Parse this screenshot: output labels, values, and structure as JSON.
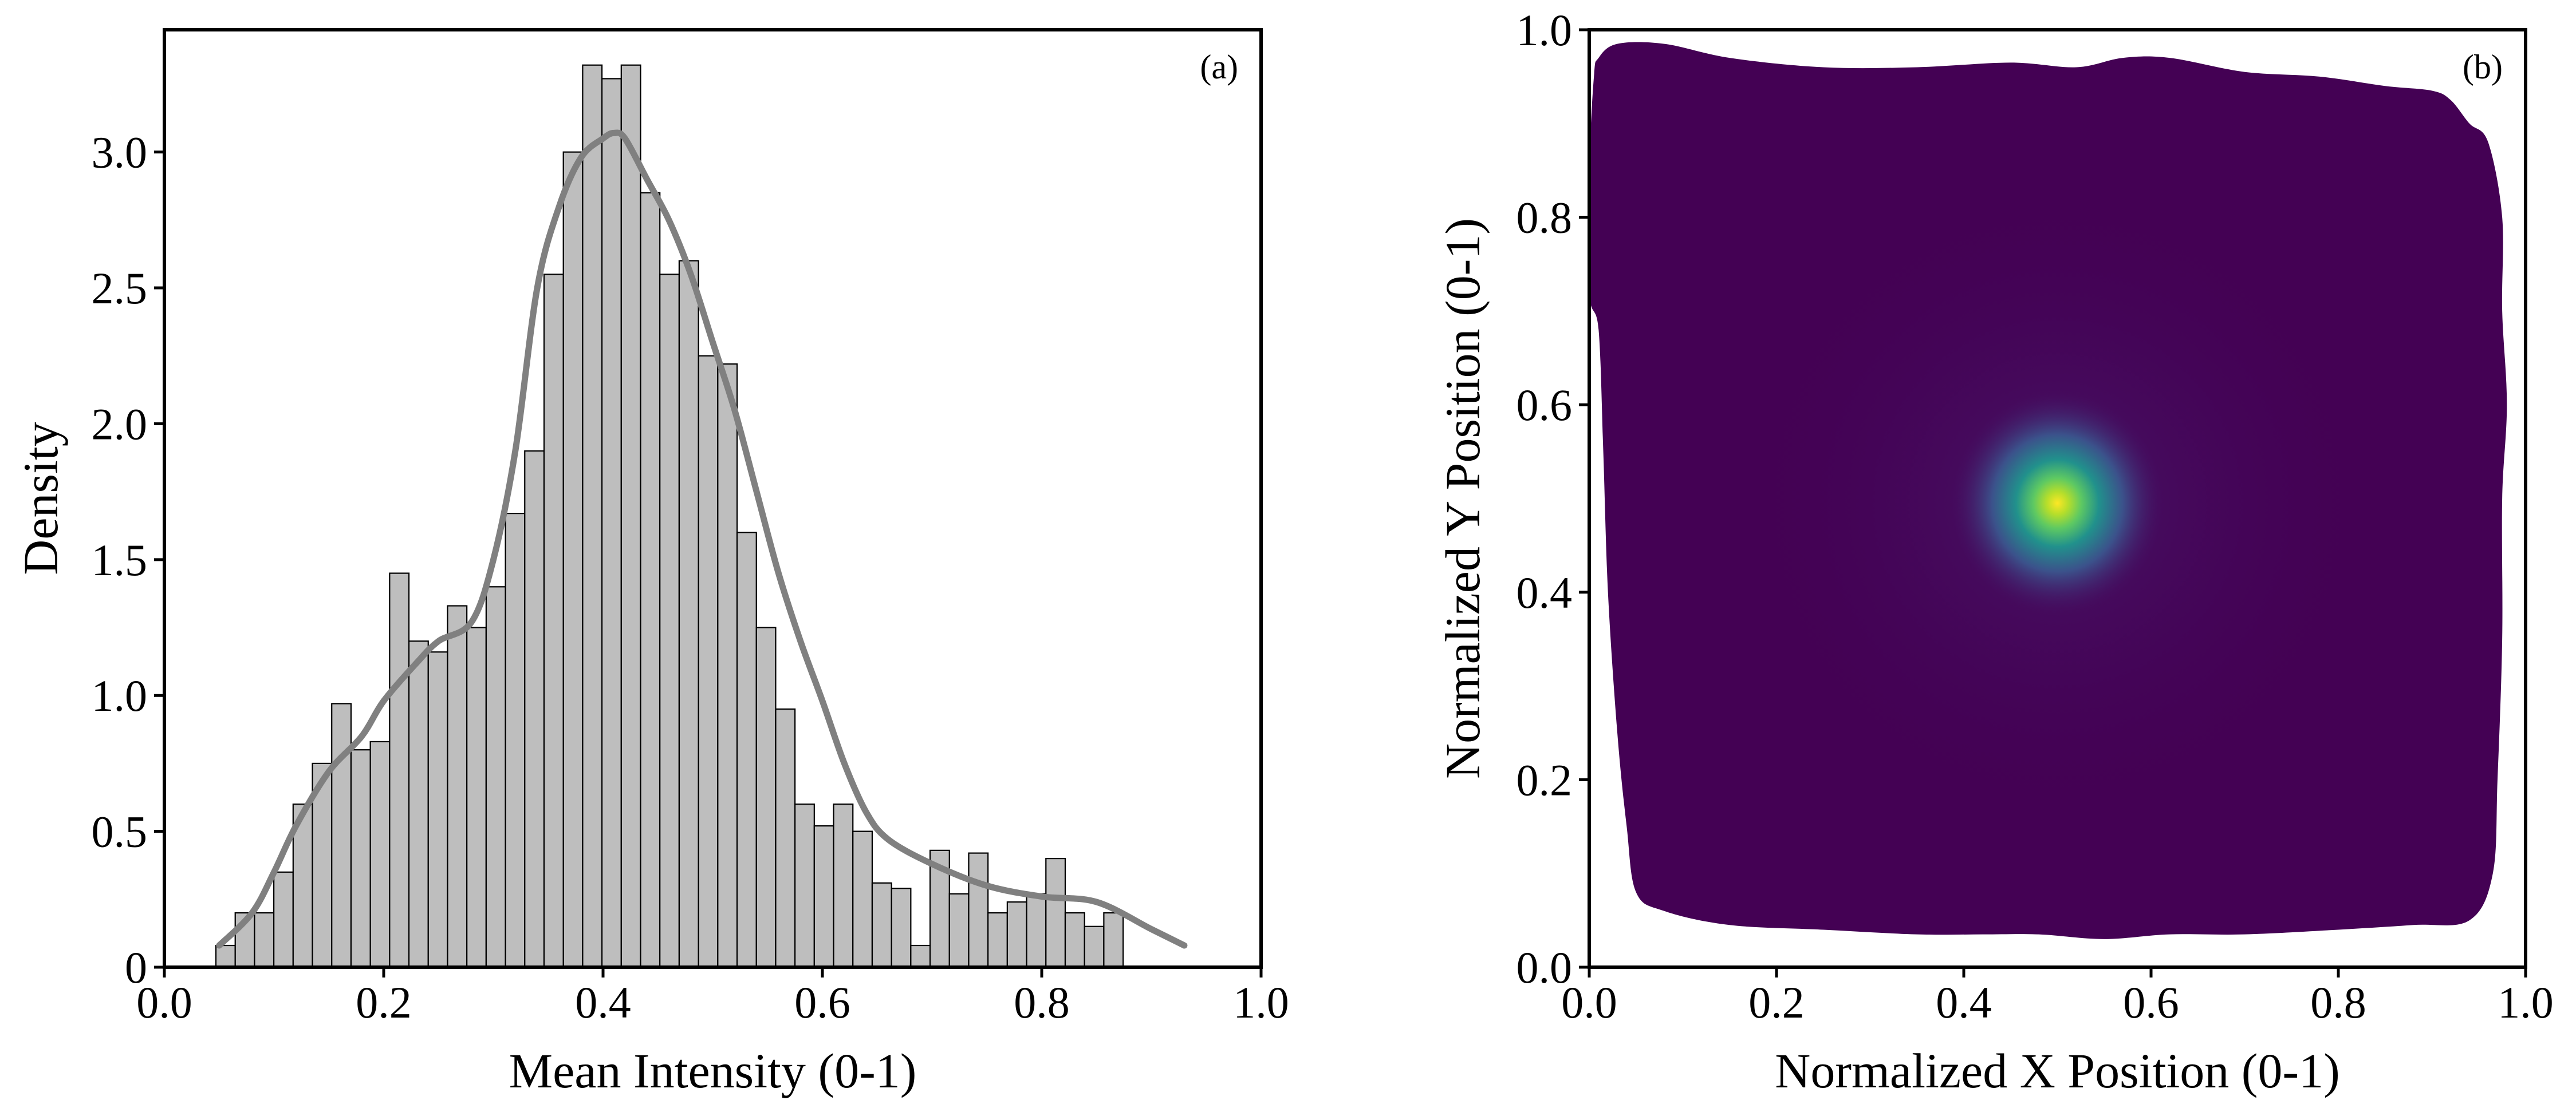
{
  "chart_data": [
    {
      "panel": "(a)",
      "type": "bar",
      "subtype": "histogram-with-kde",
      "xlabel": "Mean Intensity (0-1)",
      "ylabel": "Density",
      "xlim": [
        0.0,
        1.0
      ],
      "ylim": [
        0,
        3.45
      ],
      "x_ticks": [
        "0.0",
        "0.2",
        "0.4",
        "0.6",
        "0.8",
        "1.0"
      ],
      "y_ticks": [
        {
          "value": 0,
          "label": "0"
        },
        {
          "value": 0.5,
          "label": "0.5"
        },
        {
          "value": 1.0,
          "label": "1.0"
        },
        {
          "value": 1.5,
          "label": "1.5"
        },
        {
          "value": 2.0,
          "label": "2.0"
        },
        {
          "value": 2.5,
          "label": "2.5"
        },
        {
          "value": 3.0,
          "label": "3.0"
        }
      ],
      "bar_color": "#bebebe",
      "bar_edge_color": "#000000",
      "kde_color": "#808080",
      "bin_edges_start": 0.047,
      "bin_width": 0.0176,
      "values": [
        0.08,
        0.2,
        0.2,
        0.35,
        0.6,
        0.75,
        0.97,
        0.8,
        0.83,
        1.45,
        1.2,
        1.16,
        1.33,
        1.25,
        1.4,
        1.67,
        1.9,
        2.55,
        3.0,
        3.32,
        3.27,
        3.32,
        2.85,
        2.55,
        2.6,
        2.25,
        2.22,
        1.6,
        1.25,
        0.95,
        0.6,
        0.52,
        0.6,
        0.5,
        0.31,
        0.29,
        0.08,
        0.43,
        0.27,
        0.42,
        0.2,
        0.24,
        0.27,
        0.4,
        0.2,
        0.15,
        0.2
      ],
      "kde": {
        "x": [
          0.05,
          0.08,
          0.1,
          0.12,
          0.15,
          0.18,
          0.2,
          0.23,
          0.25,
          0.28,
          0.3,
          0.32,
          0.34,
          0.36,
          0.38,
          0.4,
          0.41,
          0.42,
          0.44,
          0.46,
          0.48,
          0.5,
          0.52,
          0.54,
          0.56,
          0.58,
          0.6,
          0.62,
          0.64,
          0.66,
          0.7,
          0.75,
          0.8,
          0.85,
          0.9,
          0.93
        ],
        "y": [
          0.08,
          0.2,
          0.35,
          0.52,
          0.72,
          0.85,
          0.98,
          1.12,
          1.2,
          1.27,
          1.5,
          1.9,
          2.5,
          2.8,
          2.98,
          3.05,
          3.07,
          3.05,
          2.9,
          2.75,
          2.55,
          2.3,
          2.05,
          1.75,
          1.45,
          1.2,
          0.98,
          0.75,
          0.57,
          0.47,
          0.38,
          0.3,
          0.26,
          0.24,
          0.14,
          0.08
        ]
      },
      "grid": false
    },
    {
      "panel": "(b)",
      "type": "heatmap",
      "subtype": "2d-kde-filled-contour",
      "xlabel": "Normalized X Position (0-1)",
      "ylabel": "Normalized Y Position (0-1)",
      "xlim": [
        0.0,
        1.0
      ],
      "ylim": [
        0.0,
        1.0
      ],
      "x_ticks": [
        "0.0",
        "0.2",
        "0.4",
        "0.6",
        "0.8",
        "1.0"
      ],
      "y_ticks": [
        "0.0",
        "0.2",
        "0.4",
        "0.6",
        "0.8",
        "1.0"
      ],
      "peak": {
        "x": 0.5,
        "y": 0.495
      },
      "colormap": [
        "#440154",
        "#3b528b",
        "#21918c",
        "#5ec962",
        "#fde725"
      ],
      "support_boundary": {
        "x": [
          0.01,
          0.03,
          0.08,
          0.15,
          0.25,
          0.35,
          0.45,
          0.52,
          0.57,
          0.62,
          0.7,
          0.78,
          0.85,
          0.9,
          0.92,
          0.94,
          0.96,
          0.975,
          0.975,
          0.98,
          0.975,
          0.975,
          0.97,
          0.965,
          0.94,
          0.88,
          0.8,
          0.7,
          0.62,
          0.55,
          0.48,
          0.42,
          0.35,
          0.25,
          0.15,
          0.08,
          0.05,
          0.04,
          0.03,
          0.02,
          0.015,
          0.01,
          0.0,
          0.0,
          0.005
        ],
        "y": [
          0.97,
          0.985,
          0.985,
          0.97,
          0.96,
          0.96,
          0.965,
          0.96,
          0.97,
          0.97,
          0.955,
          0.95,
          0.94,
          0.935,
          0.925,
          0.9,
          0.88,
          0.8,
          0.7,
          0.6,
          0.5,
          0.35,
          0.2,
          0.1,
          0.05,
          0.045,
          0.04,
          0.035,
          0.035,
          0.03,
          0.035,
          0.035,
          0.035,
          0.04,
          0.045,
          0.06,
          0.08,
          0.15,
          0.25,
          0.4,
          0.55,
          0.68,
          0.72,
          0.85,
          0.95
        ]
      },
      "grid": false
    }
  ]
}
